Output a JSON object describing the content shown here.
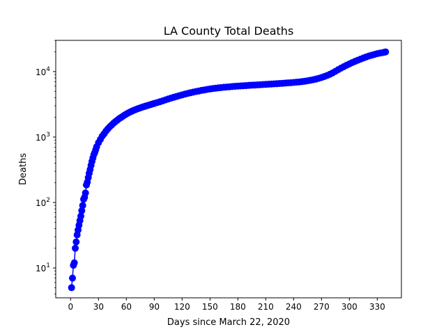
{
  "chart_data": {
    "type": "line",
    "title": "LA County Total Deaths",
    "xlabel": "Days since March 22, 2020",
    "ylabel": "Deaths",
    "yscale": "log",
    "xlim": [
      -16,
      356
    ],
    "ylim": [
      3.5,
      30000
    ],
    "xticks": [
      0,
      30,
      60,
      90,
      120,
      150,
      180,
      210,
      240,
      270,
      300,
      330
    ],
    "yticks": [
      {
        "value": 10,
        "base": "10",
        "exp": "1"
      },
      {
        "value": 100,
        "base": "10",
        "exp": "2"
      },
      {
        "value": 1000,
        "base": "10",
        "exp": "3"
      },
      {
        "value": 10000,
        "base": "10",
        "exp": "4"
      }
    ],
    "grid": false,
    "legend": "none",
    "series": [
      {
        "color": "#0000ff",
        "marker": "circle",
        "x": [
          1,
          2,
          3,
          4,
          5,
          6,
          7,
          8,
          9,
          10,
          11,
          12,
          13,
          14,
          15,
          16,
          17,
          18,
          19,
          20,
          21,
          22,
          23,
          24,
          25,
          26,
          27,
          28,
          30,
          32,
          34,
          36,
          38,
          40,
          42,
          44,
          46,
          48,
          50,
          52,
          54,
          56,
          58,
          60,
          62,
          64,
          66,
          68,
          70,
          72,
          74,
          76,
          78,
          80,
          82,
          84,
          86,
          88,
          90,
          93,
          96,
          99,
          102,
          105,
          108,
          111,
          114,
          117,
          120,
          123,
          126,
          129,
          132,
          135,
          138,
          141,
          144,
          147,
          150,
          153,
          156,
          159,
          162,
          165,
          168,
          171,
          174,
          177,
          180,
          183,
          186,
          189,
          192,
          195,
          198,
          201,
          204,
          207,
          210,
          213,
          216,
          219,
          222,
          225,
          228,
          231,
          234,
          237,
          240,
          243,
          246,
          249,
          252,
          255,
          258,
          261,
          264,
          267,
          270,
          273,
          276,
          279,
          282,
          285,
          288,
          291,
          294,
          297,
          300,
          303,
          306,
          309,
          312,
          315,
          318,
          321,
          324,
          327,
          330,
          333,
          336,
          338,
          339
        ],
        "y": [
          5,
          7,
          11,
          12,
          20,
          25,
          32,
          38,
          45,
          53,
          62,
          75,
          90,
          112,
          120,
          140,
          185,
          205,
          240,
          280,
          320,
          370,
          425,
          480,
          540,
          580,
          640,
          710,
          820,
          920,
          1030,
          1120,
          1230,
          1330,
          1430,
          1520,
          1620,
          1710,
          1800,
          1900,
          1980,
          2070,
          2160,
          2250,
          2330,
          2410,
          2490,
          2560,
          2630,
          2700,
          2760,
          2830,
          2890,
          2950,
          3010,
          3070,
          3130,
          3200,
          3260,
          3360,
          3460,
          3570,
          3690,
          3810,
          3930,
          4050,
          4170,
          4290,
          4410,
          4530,
          4640,
          4750,
          4860,
          4960,
          5060,
          5160,
          5250,
          5340,
          5420,
          5500,
          5570,
          5640,
          5700,
          5760,
          5810,
          5860,
          5910,
          5960,
          6000,
          6040,
          6080,
          6120,
          6160,
          6200,
          6230,
          6260,
          6300,
          6340,
          6380,
          6420,
          6460,
          6500,
          6540,
          6580,
          6620,
          6670,
          6720,
          6770,
          6830,
          6890,
          6960,
          7040,
          7130,
          7240,
          7360,
          7510,
          7680,
          7880,
          8120,
          8400,
          8720,
          9100,
          9550,
          10100,
          10700,
          11300,
          11900,
          12500,
          13100,
          13700,
          14300,
          14900,
          15500,
          16100,
          16700,
          17300,
          17800,
          18300,
          18800,
          19200,
          19500,
          19800,
          20000
        ]
      }
    ]
  }
}
